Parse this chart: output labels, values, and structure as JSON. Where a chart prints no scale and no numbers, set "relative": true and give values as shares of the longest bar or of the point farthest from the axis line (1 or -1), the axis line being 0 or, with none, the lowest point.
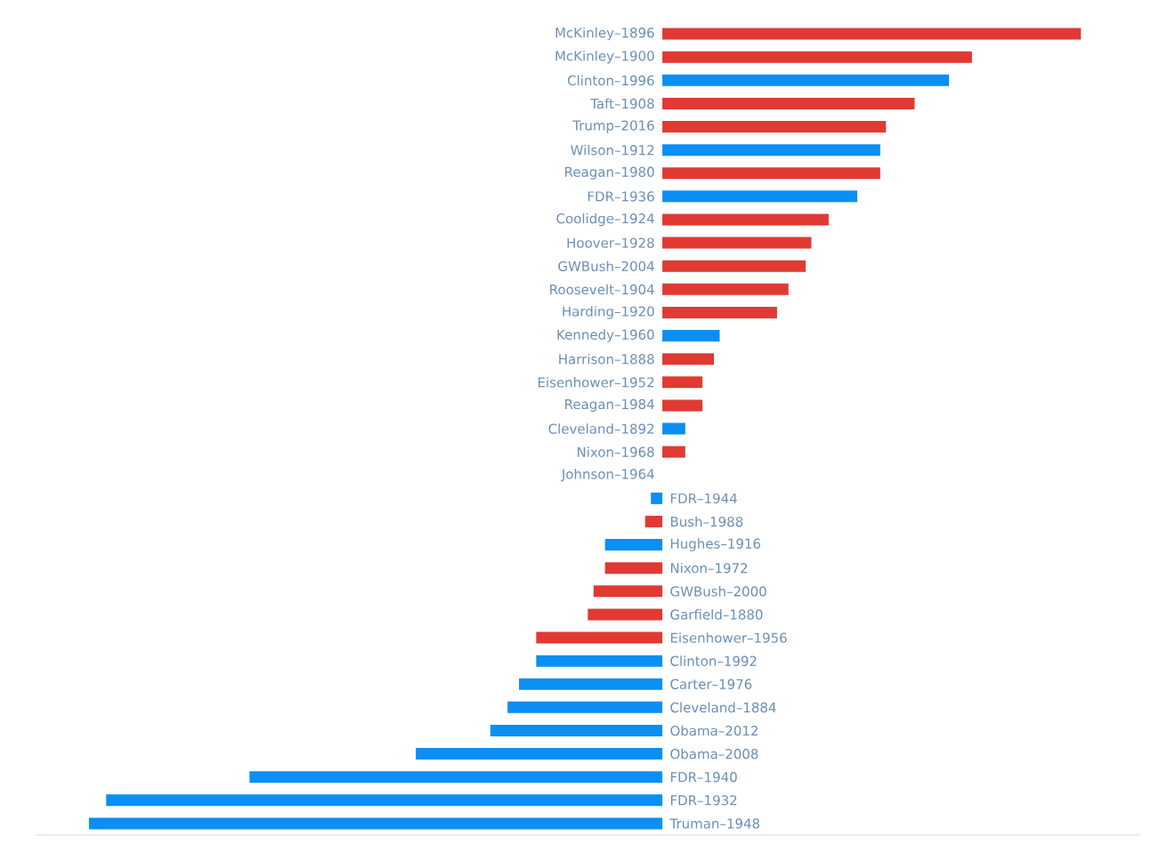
{
  "chart_data": {
    "type": "bar",
    "orientation": "horizontal",
    "relative": true,
    "categories": [
      "McKinley–1896",
      "McKinley–1900",
      "Clinton–1996",
      "Taft–1908",
      "Trump–2016",
      "Wilson–1912",
      "Reagan–1980",
      "FDR–1936",
      "Coolidge–1924",
      "Hoover–1928",
      "GWBush–2004",
      "Roosevelt–1904",
      "Harding–1920",
      "Kennedy–1960",
      "Harrison–1888",
      "Eisenhower–1952",
      "Reagan–1984",
      "Cleveland–1892",
      "Nixon–1968",
      "Johnson–1964",
      "FDR–1944",
      "Bush–1988",
      "Hughes–1916",
      "Nixon–1972",
      "GWBush–2000",
      "Garfield–1880",
      "Eisenhower–1956",
      "Clinton–1992",
      "Carter–1976",
      "Cleveland–1884",
      "Obama–2012",
      "Obama–2008",
      "FDR–1940",
      "FDR–1932",
      "Truman–1948"
    ],
    "values": [
      0.73,
      0.54,
      0.5,
      0.44,
      0.39,
      0.38,
      0.38,
      0.34,
      0.29,
      0.26,
      0.25,
      0.22,
      0.2,
      0.1,
      0.09,
      0.07,
      0.07,
      0.04,
      0.04,
      0,
      -0.02,
      -0.03,
      -0.1,
      -0.1,
      -0.12,
      -0.13,
      -0.22,
      -0.22,
      -0.25,
      -0.27,
      -0.3,
      -0.43,
      -0.72,
      -0.97,
      -1
    ],
    "colors": [
      "#e03a33",
      "#e03a33",
      "#0a8ff5",
      "#e03a33",
      "#e03a33",
      "#0a8ff5",
      "#e03a33",
      "#0a8ff5",
      "#e03a33",
      "#e03a33",
      "#e03a33",
      "#e03a33",
      "#e03a33",
      "#0a8ff5",
      "#e03a33",
      "#e03a33",
      "#e03a33",
      "#0a8ff5",
      "#e03a33",
      "#e03a33",
      "#0a8ff5",
      "#e03a33",
      "#0a8ff5",
      "#e03a33",
      "#e03a33",
      "#e03a33",
      "#e03a33",
      "#0a8ff5",
      "#0a8ff5",
      "#0a8ff5",
      "#0a8ff5",
      "#0a8ff5",
      "#0a8ff5",
      "#0a8ff5",
      "#0a8ff5"
    ]
  }
}
